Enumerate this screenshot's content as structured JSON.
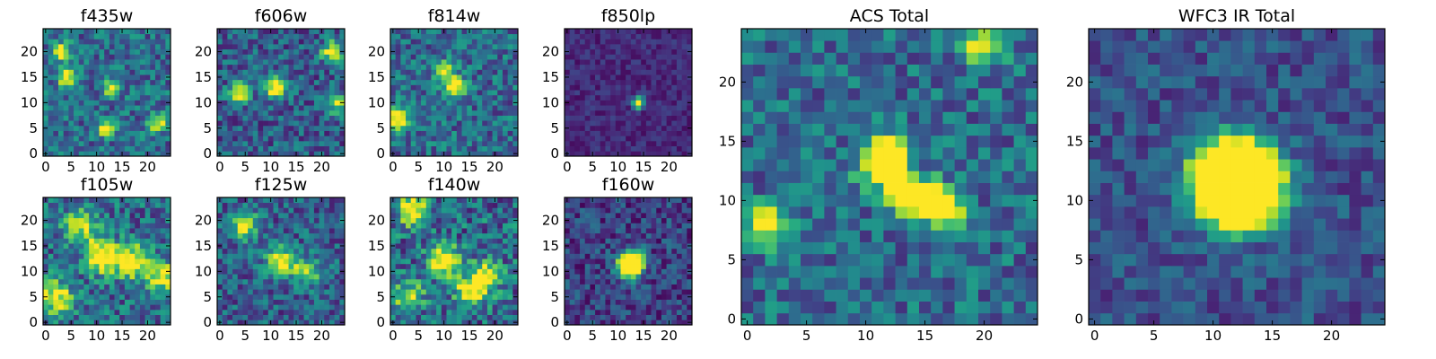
{
  "chart_data": [
    {
      "type": "heatmap",
      "title": "f435w",
      "xlim": [
        0,
        25
      ],
      "ylim": [
        0,
        25
      ],
      "xticks": [
        0,
        5,
        10,
        15,
        20
      ],
      "yticks": [
        0,
        5,
        10,
        15,
        20
      ],
      "colormap": "viridis",
      "peaks": [
        {
          "x": 3,
          "y": 20,
          "v": 0.9
        },
        {
          "x": 4,
          "y": 15,
          "v": 0.8
        },
        {
          "x": 12,
          "y": 5,
          "v": 0.85
        },
        {
          "x": 13,
          "y": 13,
          "v": 0.7
        },
        {
          "x": 22,
          "y": 6,
          "v": 0.65
        }
      ]
    },
    {
      "type": "heatmap",
      "title": "f606w",
      "xlim": [
        0,
        25
      ],
      "ylim": [
        0,
        25
      ],
      "xticks": [
        0,
        5,
        10,
        15,
        20
      ],
      "yticks": [
        0,
        5,
        10,
        15,
        20
      ],
      "colormap": "viridis",
      "peaks": [
        {
          "x": 11,
          "y": 13,
          "v": 0.9
        },
        {
          "x": 4,
          "y": 12,
          "v": 0.75
        },
        {
          "x": 22,
          "y": 20,
          "v": 0.7
        },
        {
          "x": 23,
          "y": 10,
          "v": 0.6
        }
      ]
    },
    {
      "type": "heatmap",
      "title": "f814w",
      "xlim": [
        0,
        25
      ],
      "ylim": [
        0,
        25
      ],
      "xticks": [
        0,
        5,
        10,
        15,
        20
      ],
      "yticks": [
        0,
        5,
        10,
        15,
        20
      ],
      "colormap": "viridis",
      "peaks": [
        {
          "x": 1,
          "y": 7,
          "v": 0.85
        },
        {
          "x": 12,
          "y": 13,
          "v": 0.7
        },
        {
          "x": 10,
          "y": 16,
          "v": 0.55
        }
      ]
    },
    {
      "type": "heatmap",
      "title": "f850lp",
      "xlim": [
        0,
        25
      ],
      "ylim": [
        0,
        25
      ],
      "xticks": [
        0,
        5,
        10,
        15,
        20
      ],
      "yticks": [
        0,
        5,
        10,
        15,
        20
      ],
      "colormap": "viridis",
      "peaks": [
        {
          "x": 14,
          "y": 10,
          "v": 1.0
        }
      ]
    },
    {
      "type": "heatmap",
      "title": "f105w",
      "xlim": [
        0,
        25
      ],
      "ylim": [
        0,
        25
      ],
      "xticks": [
        0,
        5,
        10,
        15,
        20
      ],
      "yticks": [
        0,
        5,
        10,
        15,
        20
      ],
      "colormap": "viridis",
      "peaks": [
        {
          "x": 11,
          "y": 13,
          "v": 0.9
        },
        {
          "x": 17,
          "y": 12,
          "v": 0.8
        },
        {
          "x": 2,
          "y": 5,
          "v": 0.7
        },
        {
          "x": 7,
          "y": 19,
          "v": 0.6
        },
        {
          "x": 23,
          "y": 9,
          "v": 0.6
        }
      ]
    },
    {
      "type": "heatmap",
      "title": "f125w",
      "xlim": [
        0,
        25
      ],
      "ylim": [
        0,
        25
      ],
      "xticks": [
        0,
        5,
        10,
        15,
        20
      ],
      "yticks": [
        0,
        5,
        10,
        15,
        20
      ],
      "colormap": "viridis",
      "peaks": [
        {
          "x": 12,
          "y": 12,
          "v": 0.85
        },
        {
          "x": 5,
          "y": 19,
          "v": 0.65
        },
        {
          "x": 17,
          "y": 10,
          "v": 0.6
        }
      ]
    },
    {
      "type": "heatmap",
      "title": "f140w",
      "xlim": [
        0,
        25
      ],
      "ylim": [
        0,
        25
      ],
      "xticks": [
        0,
        5,
        10,
        15,
        20
      ],
      "yticks": [
        0,
        5,
        10,
        15,
        20
      ],
      "colormap": "viridis",
      "peaks": [
        {
          "x": 10,
          "y": 12,
          "v": 0.9
        },
        {
          "x": 4,
          "y": 22,
          "v": 0.8
        },
        {
          "x": 18,
          "y": 9,
          "v": 0.75
        },
        {
          "x": 15,
          "y": 6,
          "v": 0.7
        },
        {
          "x": 3,
          "y": 5,
          "v": 0.6
        }
      ]
    },
    {
      "type": "heatmap",
      "title": "f160w",
      "xlim": [
        0,
        25
      ],
      "ylim": [
        0,
        25
      ],
      "xticks": [
        0,
        5,
        10,
        15,
        20
      ],
      "yticks": [
        0,
        5,
        10,
        15,
        20
      ],
      "colormap": "viridis",
      "peaks": [
        {
          "x": 12,
          "y": 11,
          "v": 1.0
        },
        {
          "x": 13,
          "y": 12,
          "v": 0.85
        }
      ]
    },
    {
      "type": "heatmap",
      "title": "ACS Total",
      "xlim": [
        0,
        25
      ],
      "ylim": [
        0,
        25
      ],
      "xticks": [
        0,
        5,
        10,
        15,
        20
      ],
      "yticks": [
        0,
        5,
        10,
        15,
        20
      ],
      "colormap": "viridis",
      "peaks": [
        {
          "x": 11,
          "y": 13,
          "v": 1.0
        },
        {
          "x": 12,
          "y": 14,
          "v": 0.9
        },
        {
          "x": 13,
          "y": 11,
          "v": 0.95
        },
        {
          "x": 15,
          "y": 10,
          "v": 1.0
        },
        {
          "x": 2,
          "y": 8,
          "v": 0.85
        },
        {
          "x": 17,
          "y": 9,
          "v": 0.7
        },
        {
          "x": 20,
          "y": 23,
          "v": 0.7
        }
      ]
    },
    {
      "type": "heatmap",
      "title": "WFC3 IR Total",
      "xlim": [
        0,
        25
      ],
      "ylim": [
        0,
        25
      ],
      "xticks": [
        0,
        5,
        10,
        15,
        20
      ],
      "yticks": [
        0,
        5,
        10,
        15,
        20
      ],
      "colormap": "viridis",
      "peaks": [
        {
          "x": 11,
          "y": 12,
          "v": 1.0
        },
        {
          "x": 12,
          "y": 12,
          "v": 1.0
        },
        {
          "x": 13,
          "y": 11,
          "v": 0.95
        },
        {
          "x": 12,
          "y": 11,
          "v": 0.9
        }
      ]
    }
  ]
}
